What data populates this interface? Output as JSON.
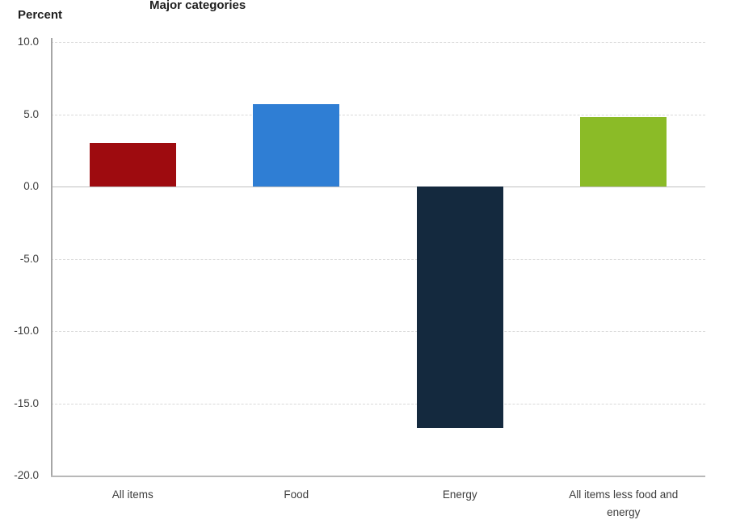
{
  "header": {
    "y_axis_title": "Percent",
    "chart_title": "Major categories"
  },
  "chart_data": {
    "type": "bar",
    "title": "Major categories",
    "ylabel": "Percent",
    "xlabel": "",
    "categories": [
      "All items",
      "Food",
      "Energy",
      "All items less food and energy"
    ],
    "values": [
      3.0,
      5.7,
      -16.7,
      4.8
    ],
    "bar_colors": [
      "#9e0b0f",
      "#2f7ed4",
      "#14293e",
      "#8bbb27"
    ],
    "ylim": [
      -20,
      10
    ],
    "yticks": [
      10,
      5,
      0,
      -5,
      -10,
      -15,
      -20
    ],
    "ytick_labels": [
      "10.0",
      "5.0",
      "0.0",
      "-5.0",
      "-10.0",
      "-15.0",
      "-20.0"
    ],
    "grid": "horizontal-dashed",
    "zero_line": "solid",
    "legend": "none"
  },
  "colors": {
    "background": "#ffffff",
    "gridline": "#d9d9d9",
    "zero_line": "#c0c0c0",
    "axis": "#a6a6a6",
    "tick_text": "#3d3d3d",
    "title_text": "#1f1f1f"
  }
}
